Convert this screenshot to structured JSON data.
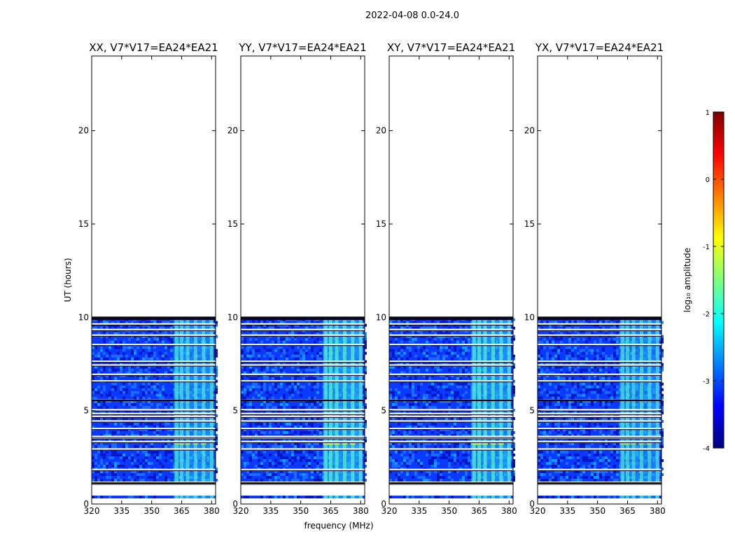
{
  "chart_data": {
    "type": "heatmap",
    "suptitle": "2022-04-08 0.0-24.0",
    "xlabel": "frequency (MHz)",
    "ylabel": "UT (hours)",
    "xlim": [
      320,
      382
    ],
    "ylim": [
      0,
      24
    ],
    "xticks": [
      320,
      335,
      350,
      365,
      380
    ],
    "yticks": [
      0,
      5,
      10,
      15,
      20
    ],
    "panels": [
      {
        "title": "XX, V7*V17=EA24*EA21",
        "hot_level": 0.55
      },
      {
        "title": "YY, V7*V17=EA24*EA21",
        "hot_level": 0.75
      },
      {
        "title": "XY, V7*V17=EA24*EA21",
        "hot_level": 0.7
      },
      {
        "title": "YX, V7*V17=EA24*EA21",
        "hot_level": 0.5
      }
    ],
    "data_blocks_ut": [
      [
        0.3,
        0.45
      ],
      [
        1.2,
        5.55
      ],
      [
        5.6,
        9.95
      ]
    ],
    "flagged_lines_ut": [
      1.12,
      1.85,
      2.95,
      3.35,
      3.55,
      3.62,
      4.05,
      4.45,
      4.7,
      4.85,
      5.05,
      6.6,
      6.95,
      7.45,
      7.65,
      8.55,
      9.05,
      9.35,
      9.65
    ],
    "rfi_band_mhz": [
      361,
      381
    ],
    "rfi_channels_mhz": [
      362.5,
      365,
      368,
      372,
      376,
      380
    ],
    "colorbar": {
      "label": "log₁₀ amplitude",
      "min": -4,
      "max": 1,
      "ticks": [
        1,
        0,
        -1,
        -2,
        -3,
        -4
      ],
      "colormap": [
        "#00007f",
        "#0000ff",
        "#007fff",
        "#00ffff",
        "#7fff7f",
        "#ffff00",
        "#ff7f00",
        "#ff0000",
        "#7f0000"
      ]
    }
  }
}
